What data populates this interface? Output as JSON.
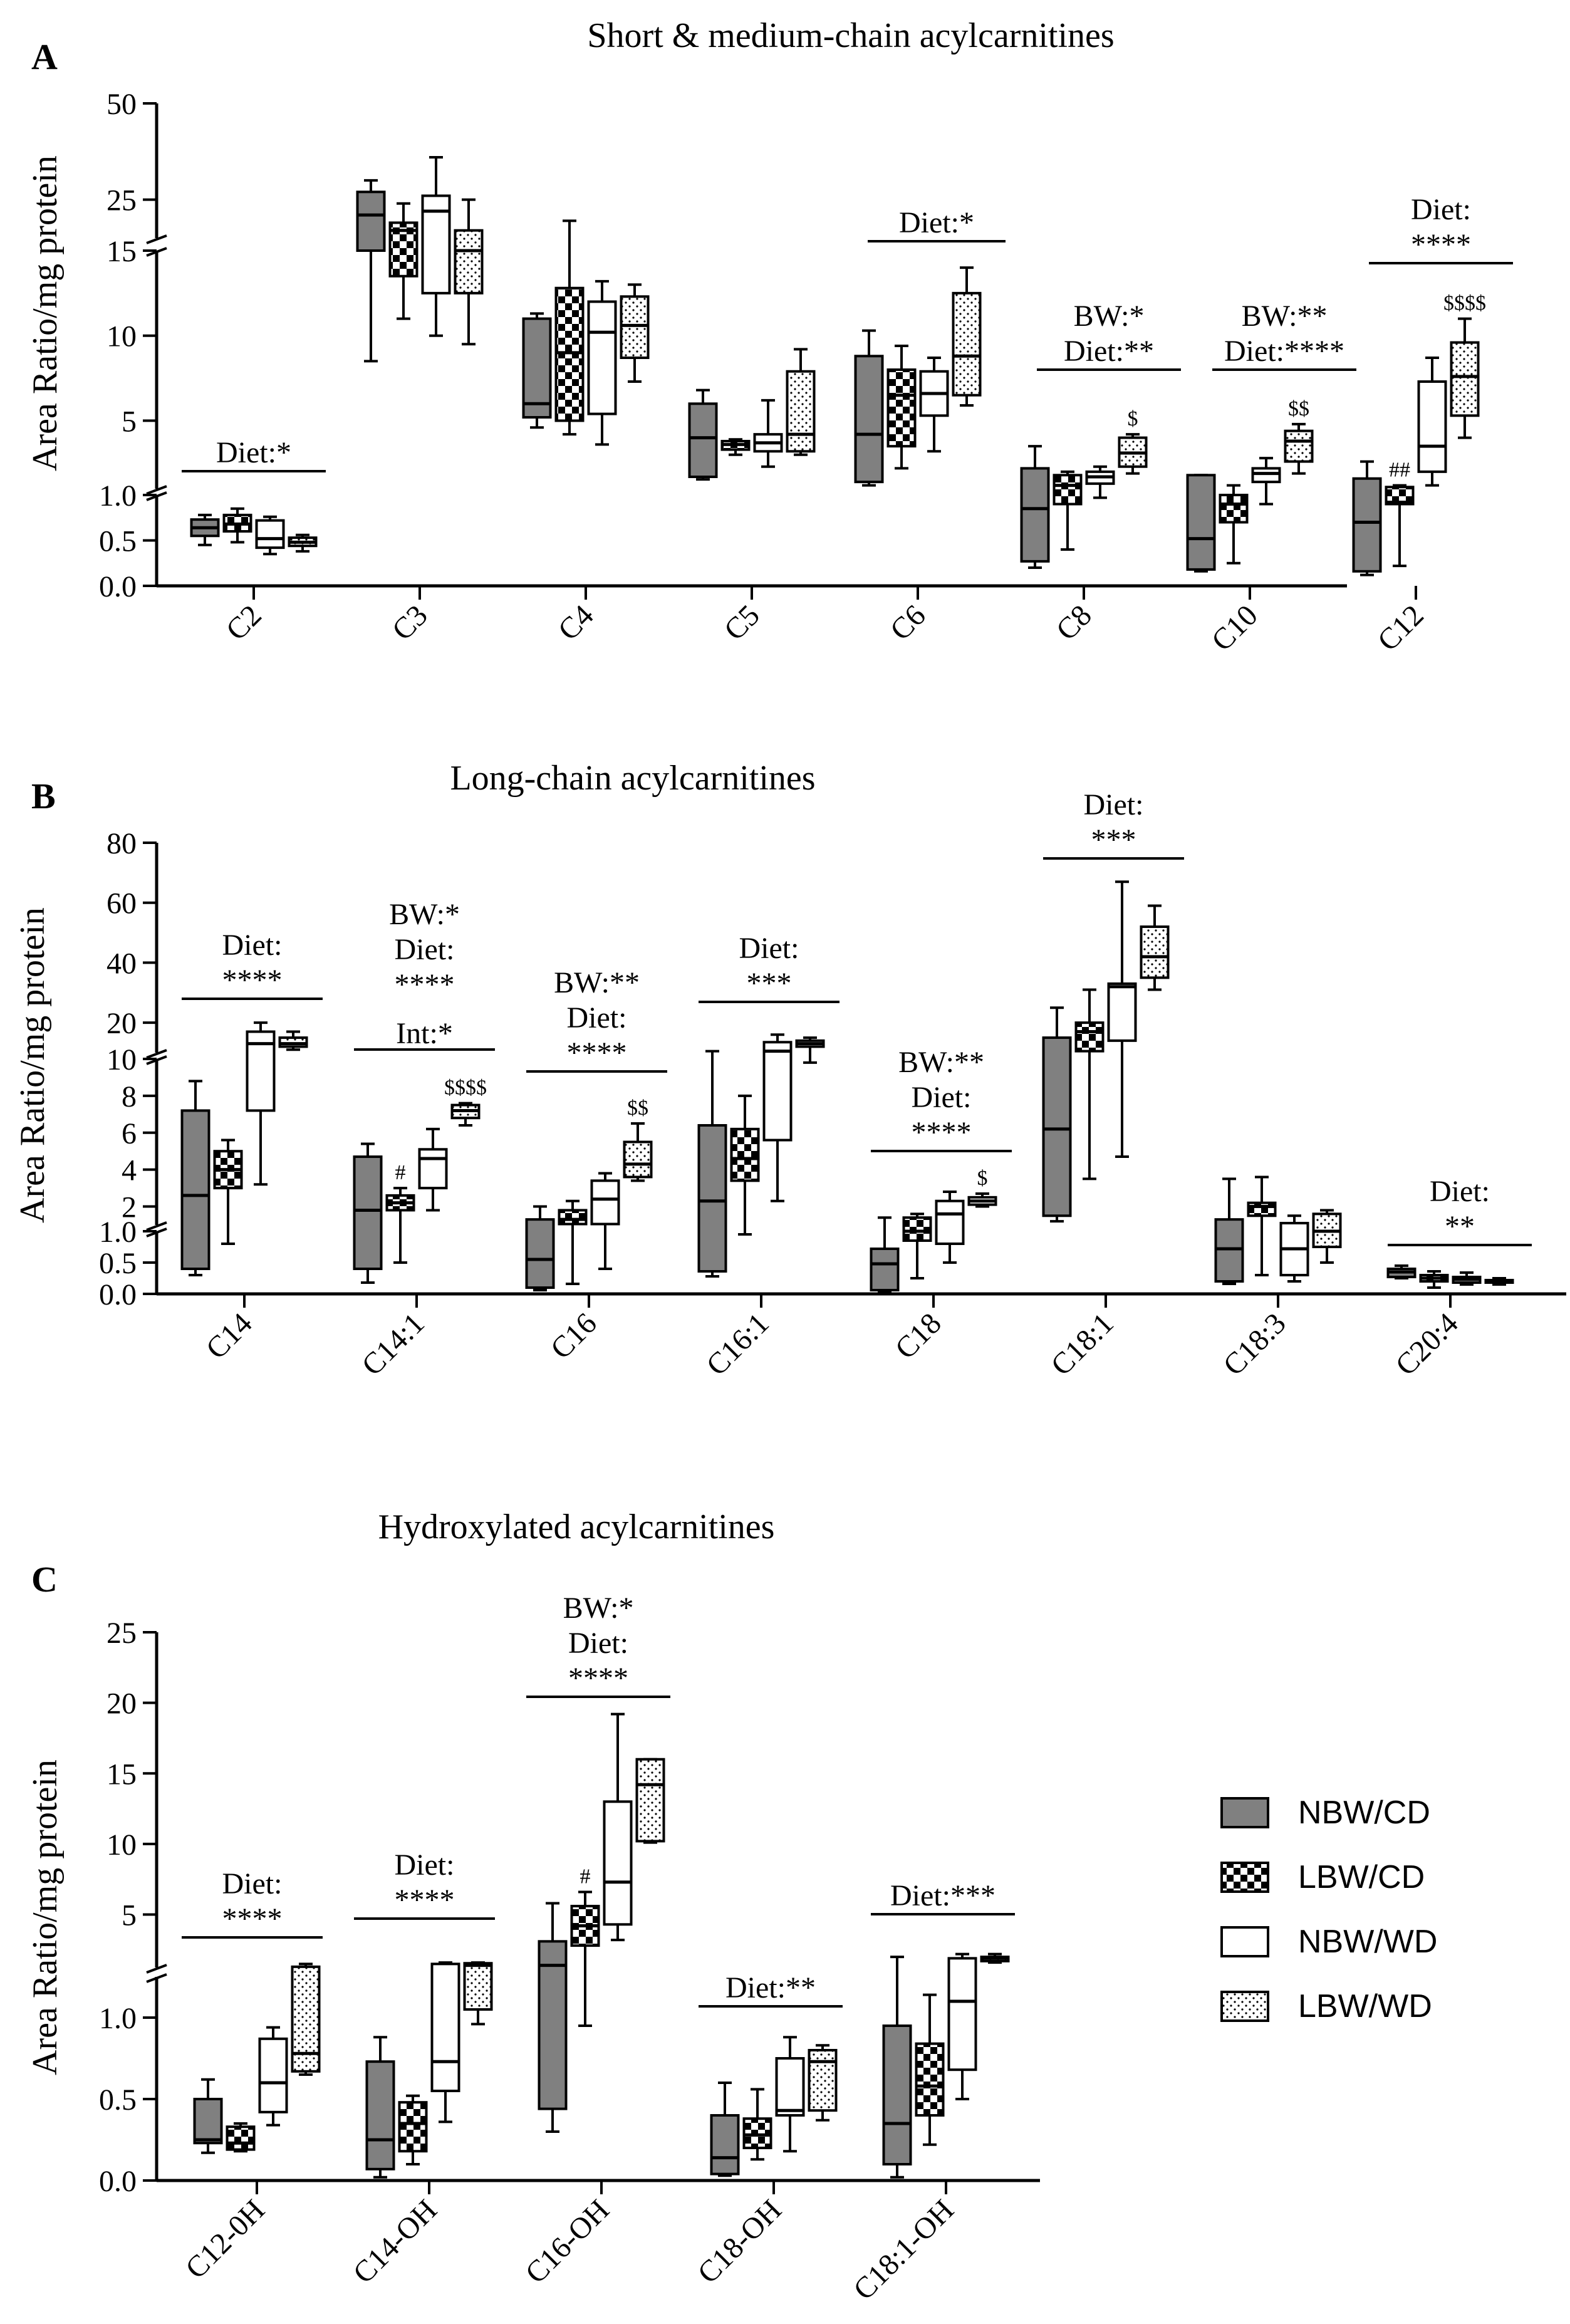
{
  "legend": [
    {
      "label": "NBW/CD",
      "pattern": "solid-grey"
    },
    {
      "label": "LBW/CD",
      "pattern": "checker"
    },
    {
      "label": "NBW/WD",
      "pattern": "white"
    },
    {
      "label": "LBW/WD",
      "pattern": "dots"
    }
  ],
  "chart_data": [
    {
      "type": "box",
      "panel_letter": "A",
      "title": "Short & medium-chain acylcarnitines",
      "ylabel": "Area Ratio/mg protein",
      "y_axis": {
        "segments": [
          {
            "range": [
              0,
              1.0
            ],
            "ticks": [
              "0.0",
              "0.5",
              "1.0"
            ]
          },
          {
            "range": [
              1.0,
              15
            ],
            "ticks": [
              "5",
              "10",
              "15"
            ]
          },
          {
            "range": [
              15,
              50
            ],
            "ticks": [
              "25",
              "50"
            ]
          }
        ]
      },
      "categories": [
        "C2",
        "C3",
        "C4",
        "C5",
        "C6",
        "C8",
        "C10",
        "C12"
      ],
      "series_order": [
        "NBW/CD",
        "LBW/CD",
        "NBW/WD",
        "LBW/WD"
      ],
      "boxes": [
        [
          [
            0.45,
            0.55,
            0.64,
            0.73,
            0.78
          ],
          [
            0.48,
            0.6,
            0.68,
            0.78,
            0.85
          ],
          [
            0.35,
            0.42,
            0.52,
            0.72,
            0.76
          ],
          [
            0.38,
            0.44,
            0.48,
            0.53,
            0.56
          ]
        ],
        [
          [
            8.5,
            15,
            21,
            27,
            30
          ],
          [
            11,
            13.5,
            17,
            19,
            24
          ],
          [
            10,
            12.5,
            22,
            26,
            36
          ],
          [
            9.5,
            12.5,
            15,
            17,
            25
          ]
        ],
        [
          [
            4.6,
            5.2,
            6.0,
            11.0,
            11.3
          ],
          [
            4.2,
            5.0,
            9.0,
            12.8,
            19.5
          ],
          [
            3.6,
            5.4,
            10.2,
            12.0,
            13.2
          ],
          [
            7.3,
            8.7,
            10.6,
            12.3,
            13.0
          ]
        ],
        [
          [
            1.55,
            1.7,
            4.0,
            6.0,
            6.8
          ],
          [
            3.0,
            3.3,
            3.6,
            3.8,
            3.9
          ],
          [
            2.3,
            3.2,
            3.7,
            4.2,
            6.2
          ],
          [
            3.0,
            3.2,
            4.2,
            7.9,
            9.2
          ]
        ],
        [
          [
            1.2,
            1.4,
            4.2,
            8.8,
            10.3
          ],
          [
            2.2,
            3.5,
            6.5,
            8.0,
            9.4
          ],
          [
            3.2,
            5.3,
            6.6,
            7.9,
            8.7
          ],
          [
            5.9,
            6.5,
            8.8,
            12.5,
            14.0
          ]
        ],
        [
          [
            0.2,
            0.27,
            0.85,
            2.2,
            3.5
          ],
          [
            0.4,
            0.9,
            1.2,
            1.8,
            2.0
          ],
          [
            0.97,
            1.3,
            1.7,
            2.0,
            2.3
          ],
          [
            1.9,
            2.3,
            3.1,
            4.0,
            4.2
          ]
        ],
        [
          [
            0.16,
            0.18,
            0.52,
            1.8,
            1.8
          ],
          [
            0.25,
            0.7,
            0.9,
            1.0,
            1.2
          ],
          [
            0.9,
            1.4,
            1.9,
            2.2,
            2.8
          ],
          [
            1.9,
            2.6,
            3.8,
            4.4,
            4.8
          ]
        ],
        [
          [
            0.12,
            0.16,
            0.7,
            1.6,
            2.6
          ],
          [
            0.22,
            0.9,
            0.92,
            1.1,
            1.2
          ],
          [
            1.2,
            2.0,
            3.5,
            7.3,
            8.7
          ],
          [
            4.0,
            5.3,
            7.6,
            9.6,
            11.0
          ]
        ]
      ],
      "annotations": [
        {
          "category": "C2",
          "lines": [
            "Diet:*"
          ]
        },
        {
          "category": "C6",
          "lines": [
            "Diet:*"
          ]
        },
        {
          "category": "C8",
          "lines": [
            "BW:*",
            "Diet:**"
          ]
        },
        {
          "category": "C10",
          "lines": [
            "BW:**",
            "Diet:****"
          ]
        },
        {
          "category": "C12",
          "lines": [
            "Diet:",
            "****"
          ]
        }
      ],
      "markers": [
        {
          "category": "C8",
          "series": 3,
          "text": "$"
        },
        {
          "category": "C10",
          "series": 3,
          "text": "$$"
        },
        {
          "category": "C12",
          "series": 1,
          "text": "##"
        },
        {
          "category": "C12",
          "series": 3,
          "text": "$$$$"
        }
      ]
    },
    {
      "type": "box",
      "panel_letter": "B",
      "title": "Long-chain acylcarnitines",
      "ylabel": "Area Ratio/mg protein",
      "y_axis": {
        "segments": [
          {
            "range": [
              0,
              1.0
            ],
            "ticks": [
              "0.0",
              "0.5",
              "1.0"
            ]
          },
          {
            "range": [
              1.0,
              10
            ],
            "ticks": [
              "2",
              "4",
              "6",
              "8",
              "10"
            ]
          },
          {
            "range": [
              10,
              80
            ],
            "ticks": [
              "20",
              "40",
              "60",
              "80"
            ]
          }
        ]
      },
      "categories": [
        "C14",
        "C14:1",
        "C16",
        "C16:1",
        "C18",
        "C18:1",
        "C18:3",
        "C20:4"
      ],
      "series_order": [
        "NBW/CD",
        "LBW/CD",
        "NBW/WD",
        "LBW/WD"
      ],
      "boxes": [
        [
          [
            0.3,
            0.4,
            2.6,
            7.2,
            8.8
          ],
          [
            0.8,
            3.0,
            4.0,
            5.0,
            5.6
          ],
          [
            3.2,
            7.2,
            13,
            17,
            20
          ],
          [
            11,
            12,
            13,
            15,
            17
          ]
        ],
        [
          [
            0.18,
            0.4,
            1.8,
            4.7,
            5.4
          ],
          [
            0.5,
            1.8,
            2.2,
            2.6,
            3.0
          ],
          [
            1.8,
            3.0,
            4.6,
            5.1,
            6.2
          ],
          [
            6.4,
            6.8,
            7.2,
            7.5,
            7.6
          ]
        ],
        [
          [
            0.06,
            0.1,
            0.55,
            1.3,
            2.0
          ],
          [
            0.16,
            1.05,
            1.3,
            1.8,
            2.3
          ],
          [
            0.4,
            1.05,
            2.4,
            3.4,
            3.8
          ],
          [
            3.4,
            3.6,
            4.3,
            5.5,
            6.5
          ]
        ],
        [
          [
            0.28,
            0.36,
            2.3,
            6.4,
            10.5
          ],
          [
            0.95,
            3.4,
            4.6,
            6.2,
            8.0
          ],
          [
            2.3,
            5.6,
            10.5,
            13.5,
            16
          ],
          [
            9.8,
            12,
            13,
            14,
            15
          ]
        ],
        [
          [
            0.04,
            0.06,
            0.48,
            0.72,
            1.4
          ],
          [
            0.25,
            0.85,
            1.0,
            1.4,
            1.6
          ],
          [
            0.5,
            0.8,
            1.6,
            2.3,
            2.8
          ],
          [
            2.0,
            2.1,
            2.3,
            2.5,
            2.7
          ]
        ],
        [
          [
            1.2,
            1.5,
            6.2,
            15,
            25
          ],
          [
            3.5,
            10.5,
            17,
            20,
            31
          ],
          [
            4.7,
            14,
            32,
            33,
            67
          ],
          [
            31,
            35,
            42,
            52,
            59
          ]
        ],
        [
          [
            0.16,
            0.2,
            0.72,
            1.3,
            3.5
          ],
          [
            0.3,
            1.5,
            2.0,
            2.2,
            3.6
          ],
          [
            0.2,
            0.3,
            0.72,
            1.1,
            1.5
          ],
          [
            0.5,
            0.75,
            1.0,
            1.6,
            1.8
          ]
        ],
        [
          [
            0.25,
            0.27,
            0.35,
            0.4,
            0.45
          ],
          [
            0.1,
            0.2,
            0.25,
            0.3,
            0.36
          ],
          [
            0.15,
            0.18,
            0.23,
            0.27,
            0.34
          ],
          [
            0.15,
            0.18,
            0.2,
            0.22,
            0.25
          ]
        ]
      ],
      "annotations": [
        {
          "category": "C14",
          "lines": [
            "Diet:",
            "****"
          ]
        },
        {
          "category": "C14:1",
          "lines": [
            "BW:*",
            "Diet:",
            "****",
            "Int:*"
          ]
        },
        {
          "category": "C16",
          "lines": [
            "BW:**",
            "Diet:",
            "****"
          ]
        },
        {
          "category": "C16:1",
          "lines": [
            "Diet:",
            "***"
          ]
        },
        {
          "category": "C18",
          "lines": [
            "BW:**",
            "Diet:",
            "****"
          ]
        },
        {
          "category": "C18:1",
          "lines": [
            "Diet:",
            "***"
          ]
        },
        {
          "category": "C20:4",
          "lines": [
            "Diet:",
            "**"
          ]
        }
      ],
      "markers": [
        {
          "category": "C14:1",
          "series": 1,
          "text": "#"
        },
        {
          "category": "C14:1",
          "series": 3,
          "text": "$$$$"
        },
        {
          "category": "C16",
          "series": 3,
          "text": "$$"
        },
        {
          "category": "C18",
          "series": 3,
          "text": "$"
        }
      ]
    },
    {
      "type": "box",
      "panel_letter": "C",
      "title": "Hydroxylated acylcarnitines",
      "ylabel": "Area Ratio/mg protein",
      "y_axis": {
        "segments": [
          {
            "range": [
              0,
              1.25
            ],
            "ticks": [
              "0.0",
              "0.5",
              "1.0"
            ]
          },
          {
            "range": [
              1.25,
              25
            ],
            "ticks": [
              "5",
              "10",
              "15",
              "20",
              "25"
            ]
          }
        ]
      },
      "categories": [
        "C12-0H",
        "C14-OH",
        "C16-OH",
        "C18-OH",
        "C18:1-OH"
      ],
      "series_order": [
        "NBW/CD",
        "LBW/CD",
        "NBW/WD",
        "LBW/WD"
      ],
      "boxes": [
        [
          [
            0.17,
            0.23,
            0.25,
            0.5,
            0.62
          ],
          [
            0.18,
            0.19,
            0.23,
            0.33,
            0.35
          ],
          [
            0.34,
            0.42,
            0.6,
            0.87,
            0.94
          ],
          [
            0.65,
            0.67,
            0.78,
            1.3,
            1.5
          ]
        ],
        [
          [
            0.02,
            0.07,
            0.25,
            0.73,
            0.88
          ],
          [
            0.1,
            0.18,
            0.35,
            0.48,
            0.52
          ],
          [
            0.36,
            0.55,
            0.73,
            1.5,
            1.6
          ],
          [
            0.96,
            1.05,
            1.4,
            1.55,
            1.6
          ]
        ],
        [
          [
            0.3,
            0.44,
            1.4,
            3.1,
            5.8
          ],
          [
            0.95,
            2.8,
            4.2,
            5.6,
            6.6
          ],
          [
            3.2,
            4.3,
            7.3,
            13.0,
            19.2
          ],
          [
            10.1,
            10.2,
            14.2,
            16.0,
            16.0
          ]
        ],
        [
          [
            0.03,
            0.04,
            0.14,
            0.4,
            0.6
          ],
          [
            0.13,
            0.2,
            0.28,
            0.38,
            0.56
          ],
          [
            0.18,
            0.4,
            0.43,
            0.75,
            0.88
          ],
          [
            0.37,
            0.43,
            0.73,
            0.8,
            0.83
          ]
        ],
        [
          [
            0.02,
            0.1,
            0.35,
            0.95,
            2.0
          ],
          [
            0.22,
            0.4,
            0.58,
            0.84,
            1.14
          ],
          [
            0.5,
            0.68,
            1.1,
            1.9,
            2.2
          ],
          [
            1.6,
            1.7,
            1.9,
            2.0,
            2.2
          ]
        ]
      ],
      "annotations": [
        {
          "category": "C12-0H",
          "lines": [
            "Diet:",
            "****"
          ]
        },
        {
          "category": "C14-OH",
          "lines": [
            "Diet:",
            "****"
          ]
        },
        {
          "category": "C16-OH",
          "lines": [
            "BW:*",
            "Diet:",
            "****"
          ]
        },
        {
          "category": "C18-OH",
          "lines": [
            "Diet:**"
          ]
        },
        {
          "category": "C18:1-OH",
          "lines": [
            "Diet:***"
          ]
        }
      ],
      "markers": [
        {
          "category": "C16-OH",
          "series": 1,
          "text": "#"
        }
      ]
    }
  ]
}
